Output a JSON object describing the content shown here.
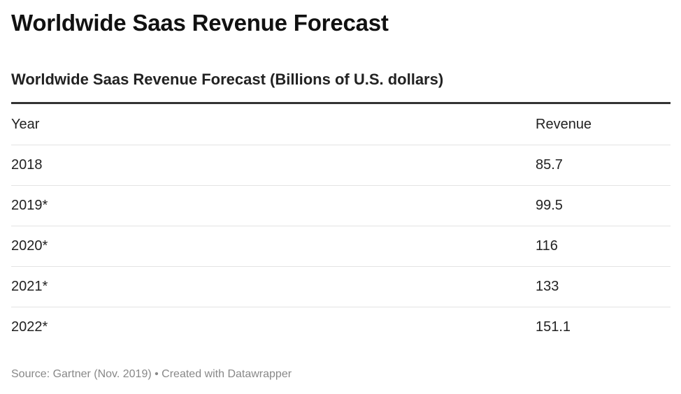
{
  "title": "Worldwide Saas Revenue Forecast",
  "subtitle": "Worldwide Saas Revenue Forecast (Billions of U.S. dollars)",
  "source": "Source: Gartner (Nov. 2019) • Created with Datawrapper",
  "chart_data": {
    "type": "table",
    "columns": [
      "Year",
      "Revenue"
    ],
    "rows": [
      [
        "2018",
        "85.7"
      ],
      [
        "2019*",
        "99.5"
      ],
      [
        "2020*",
        "116"
      ],
      [
        "2021*",
        "133"
      ],
      [
        "2022*",
        "151.1"
      ]
    ],
    "title": "Worldwide Saas Revenue Forecast",
    "subtitle": "Worldwide Saas Revenue Forecast (Billions of U.S. dollars)"
  }
}
